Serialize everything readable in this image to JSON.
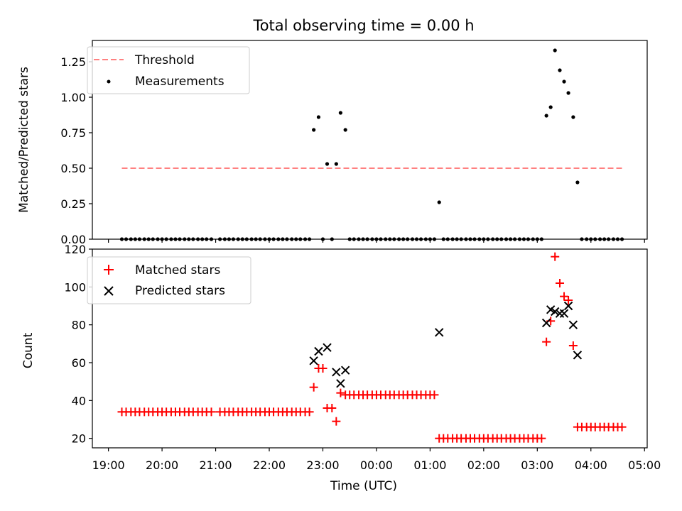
{
  "chart_data": [
    {
      "type": "scatter",
      "title": "Total observing time = 0.00 h",
      "xlabel": "",
      "ylabel": "Matched/Predicted stars",
      "ylim": [
        0,
        1.4
      ],
      "yticks": [
        0.0,
        0.25,
        0.5,
        0.75,
        1.0,
        1.25
      ],
      "ytick_labels": [
        "0.00",
        "0.25",
        "0.50",
        "0.75",
        "1.00",
        "1.25"
      ],
      "xlim_hours": [
        18.7,
        29.05
      ],
      "xticks_hours": [
        19,
        20,
        21,
        22,
        23,
        24,
        25,
        26,
        27,
        28,
        29
      ],
      "legend": {
        "position": "upper-left",
        "entries": [
          "Threshold",
          "Measurements"
        ]
      },
      "grid": false,
      "threshold": {
        "name": "Threshold",
        "y": 0.5,
        "x_range": [
          19.25,
          28.58
        ],
        "color": "#ff8080"
      },
      "series": [
        {
          "name": "Measurements",
          "color": "#000000",
          "points": [
            [
              19.25,
              0
            ],
            [
              19.33,
              0
            ],
            [
              19.42,
              0
            ],
            [
              19.5,
              0
            ],
            [
              19.58,
              0
            ],
            [
              19.67,
              0
            ],
            [
              19.75,
              0
            ],
            [
              19.83,
              0
            ],
            [
              19.92,
              0
            ],
            [
              20.0,
              0
            ],
            [
              20.08,
              0
            ],
            [
              20.17,
              0
            ],
            [
              20.25,
              0
            ],
            [
              20.33,
              0
            ],
            [
              20.42,
              0
            ],
            [
              20.5,
              0
            ],
            [
              20.58,
              0
            ],
            [
              20.67,
              0
            ],
            [
              20.75,
              0
            ],
            [
              20.83,
              0
            ],
            [
              20.92,
              0
            ],
            [
              21.08,
              0
            ],
            [
              21.17,
              0
            ],
            [
              21.25,
              0
            ],
            [
              21.33,
              0
            ],
            [
              21.42,
              0
            ],
            [
              21.5,
              0
            ],
            [
              21.58,
              0
            ],
            [
              21.67,
              0
            ],
            [
              21.75,
              0
            ],
            [
              21.83,
              0
            ],
            [
              21.92,
              0
            ],
            [
              22.0,
              0
            ],
            [
              22.08,
              0
            ],
            [
              22.17,
              0
            ],
            [
              22.25,
              0
            ],
            [
              22.33,
              0
            ],
            [
              22.42,
              0
            ],
            [
              22.5,
              0
            ],
            [
              22.58,
              0
            ],
            [
              22.67,
              0
            ],
            [
              22.75,
              0
            ],
            [
              22.83,
              0.77
            ],
            [
              22.92,
              0.86
            ],
            [
              23.0,
              0
            ],
            [
              23.08,
              0.53
            ],
            [
              23.17,
              0
            ],
            [
              23.25,
              0.53
            ],
            [
              23.33,
              0.89
            ],
            [
              23.42,
              0.77
            ],
            [
              23.5,
              0
            ],
            [
              23.58,
              0
            ],
            [
              23.67,
              0
            ],
            [
              23.75,
              0
            ],
            [
              23.83,
              0
            ],
            [
              23.92,
              0
            ],
            [
              24.0,
              0
            ],
            [
              24.08,
              0
            ],
            [
              24.17,
              0
            ],
            [
              24.25,
              0
            ],
            [
              24.33,
              0
            ],
            [
              24.42,
              0
            ],
            [
              24.5,
              0
            ],
            [
              24.58,
              0
            ],
            [
              24.67,
              0
            ],
            [
              24.75,
              0
            ],
            [
              24.83,
              0
            ],
            [
              24.92,
              0
            ],
            [
              25.0,
              0
            ],
            [
              25.08,
              0
            ],
            [
              25.17,
              0.26
            ],
            [
              25.25,
              0
            ],
            [
              25.33,
              0
            ],
            [
              25.42,
              0
            ],
            [
              25.5,
              0
            ],
            [
              25.58,
              0
            ],
            [
              25.67,
              0
            ],
            [
              25.75,
              0
            ],
            [
              25.83,
              0
            ],
            [
              25.92,
              0
            ],
            [
              26.0,
              0
            ],
            [
              26.08,
              0
            ],
            [
              26.17,
              0
            ],
            [
              26.25,
              0
            ],
            [
              26.33,
              0
            ],
            [
              26.42,
              0
            ],
            [
              26.5,
              0
            ],
            [
              26.58,
              0
            ],
            [
              26.67,
              0
            ],
            [
              26.75,
              0
            ],
            [
              26.83,
              0
            ],
            [
              26.92,
              0
            ],
            [
              27.0,
              0
            ],
            [
              27.08,
              0
            ],
            [
              27.17,
              0.87
            ],
            [
              27.25,
              0.93
            ],
            [
              27.33,
              1.33
            ],
            [
              27.42,
              1.19
            ],
            [
              27.5,
              1.11
            ],
            [
              27.58,
              1.03
            ],
            [
              27.67,
              0.86
            ],
            [
              27.75,
              0.4
            ],
            [
              27.83,
              0
            ],
            [
              27.92,
              0
            ],
            [
              28.0,
              0
            ],
            [
              28.08,
              0
            ],
            [
              28.17,
              0
            ],
            [
              28.25,
              0
            ],
            [
              28.33,
              0
            ],
            [
              28.42,
              0
            ],
            [
              28.5,
              0
            ],
            [
              28.58,
              0
            ]
          ]
        }
      ]
    },
    {
      "type": "scatter",
      "title": "",
      "xlabel": "Time (UTC)",
      "ylabel": "Count",
      "ylim": [
        15,
        120
      ],
      "yticks": [
        20,
        40,
        60,
        80,
        100,
        120
      ],
      "ytick_labels": [
        "20",
        "40",
        "60",
        "80",
        "100",
        "120"
      ],
      "xlim_hours": [
        18.7,
        29.05
      ],
      "xticks_hours": [
        19,
        20,
        21,
        22,
        23,
        24,
        25,
        26,
        27,
        28,
        29
      ],
      "xtick_labels": [
        "19:00",
        "20:00",
        "21:00",
        "22:00",
        "23:00",
        "00:00",
        "01:00",
        "02:00",
        "03:00",
        "04:00",
        "05:00"
      ],
      "legend": {
        "position": "upper-left",
        "entries": [
          "Matched stars",
          "Predicted stars"
        ]
      },
      "grid": false,
      "series": [
        {
          "name": "Matched stars",
          "marker": "plus",
          "color": "#ff0000",
          "points": [
            [
              19.25,
              34
            ],
            [
              19.33,
              34
            ],
            [
              19.42,
              34
            ],
            [
              19.5,
              34
            ],
            [
              19.58,
              34
            ],
            [
              19.67,
              34
            ],
            [
              19.75,
              34
            ],
            [
              19.83,
              34
            ],
            [
              19.92,
              34
            ],
            [
              20.0,
              34
            ],
            [
              20.08,
              34
            ],
            [
              20.17,
              34
            ],
            [
              20.25,
              34
            ],
            [
              20.33,
              34
            ],
            [
              20.42,
              34
            ],
            [
              20.5,
              34
            ],
            [
              20.58,
              34
            ],
            [
              20.67,
              34
            ],
            [
              20.75,
              34
            ],
            [
              20.83,
              34
            ],
            [
              20.92,
              34
            ],
            [
              21.08,
              34
            ],
            [
              21.17,
              34
            ],
            [
              21.25,
              34
            ],
            [
              21.33,
              34
            ],
            [
              21.42,
              34
            ],
            [
              21.5,
              34
            ],
            [
              21.58,
              34
            ],
            [
              21.67,
              34
            ],
            [
              21.75,
              34
            ],
            [
              21.83,
              34
            ],
            [
              21.92,
              34
            ],
            [
              22.0,
              34
            ],
            [
              22.08,
              34
            ],
            [
              22.17,
              34
            ],
            [
              22.25,
              34
            ],
            [
              22.33,
              34
            ],
            [
              22.42,
              34
            ],
            [
              22.5,
              34
            ],
            [
              22.58,
              34
            ],
            [
              22.67,
              34
            ],
            [
              22.75,
              34
            ],
            [
              22.83,
              47
            ],
            [
              22.92,
              57
            ],
            [
              23.0,
              57
            ],
            [
              23.08,
              36
            ],
            [
              23.17,
              36
            ],
            [
              23.25,
              29
            ],
            [
              23.33,
              44
            ],
            [
              23.42,
              43
            ],
            [
              23.5,
              43
            ],
            [
              23.58,
              43
            ],
            [
              23.67,
              43
            ],
            [
              23.75,
              43
            ],
            [
              23.83,
              43
            ],
            [
              23.92,
              43
            ],
            [
              24.0,
              43
            ],
            [
              24.08,
              43
            ],
            [
              24.17,
              43
            ],
            [
              24.25,
              43
            ],
            [
              24.33,
              43
            ],
            [
              24.42,
              43
            ],
            [
              24.5,
              43
            ],
            [
              24.58,
              43
            ],
            [
              24.67,
              43
            ],
            [
              24.75,
              43
            ],
            [
              24.83,
              43
            ],
            [
              24.92,
              43
            ],
            [
              25.0,
              43
            ],
            [
              25.08,
              43
            ],
            [
              25.17,
              20
            ],
            [
              25.25,
              20
            ],
            [
              25.33,
              20
            ],
            [
              25.42,
              20
            ],
            [
              25.5,
              20
            ],
            [
              25.58,
              20
            ],
            [
              25.67,
              20
            ],
            [
              25.75,
              20
            ],
            [
              25.83,
              20
            ],
            [
              25.92,
              20
            ],
            [
              26.0,
              20
            ],
            [
              26.08,
              20
            ],
            [
              26.17,
              20
            ],
            [
              26.25,
              20
            ],
            [
              26.33,
              20
            ],
            [
              26.42,
              20
            ],
            [
              26.5,
              20
            ],
            [
              26.58,
              20
            ],
            [
              26.67,
              20
            ],
            [
              26.75,
              20
            ],
            [
              26.83,
              20
            ],
            [
              26.92,
              20
            ],
            [
              27.0,
              20
            ],
            [
              27.08,
              20
            ],
            [
              27.17,
              71
            ],
            [
              27.25,
              82
            ],
            [
              27.33,
              116
            ],
            [
              27.42,
              102
            ],
            [
              27.5,
              95
            ],
            [
              27.58,
              93
            ],
            [
              27.67,
              69
            ],
            [
              27.75,
              26
            ],
            [
              27.83,
              26
            ],
            [
              27.92,
              26
            ],
            [
              28.0,
              26
            ],
            [
              28.08,
              26
            ],
            [
              28.17,
              26
            ],
            [
              28.25,
              26
            ],
            [
              28.33,
              26
            ],
            [
              28.42,
              26
            ],
            [
              28.5,
              26
            ],
            [
              28.58,
              26
            ]
          ]
        },
        {
          "name": "Predicted stars",
          "marker": "x",
          "color": "#000000",
          "points": [
            [
              22.83,
              61
            ],
            [
              22.92,
              66
            ],
            [
              23.08,
              68
            ],
            [
              23.25,
              55
            ],
            [
              23.33,
              49
            ],
            [
              23.42,
              56
            ],
            [
              25.17,
              76
            ],
            [
              27.17,
              81
            ],
            [
              27.25,
              88
            ],
            [
              27.33,
              87
            ],
            [
              27.42,
              86
            ],
            [
              27.5,
              86
            ],
            [
              27.58,
              90
            ],
            [
              27.67,
              80
            ],
            [
              27.75,
              64
            ]
          ]
        }
      ]
    }
  ]
}
